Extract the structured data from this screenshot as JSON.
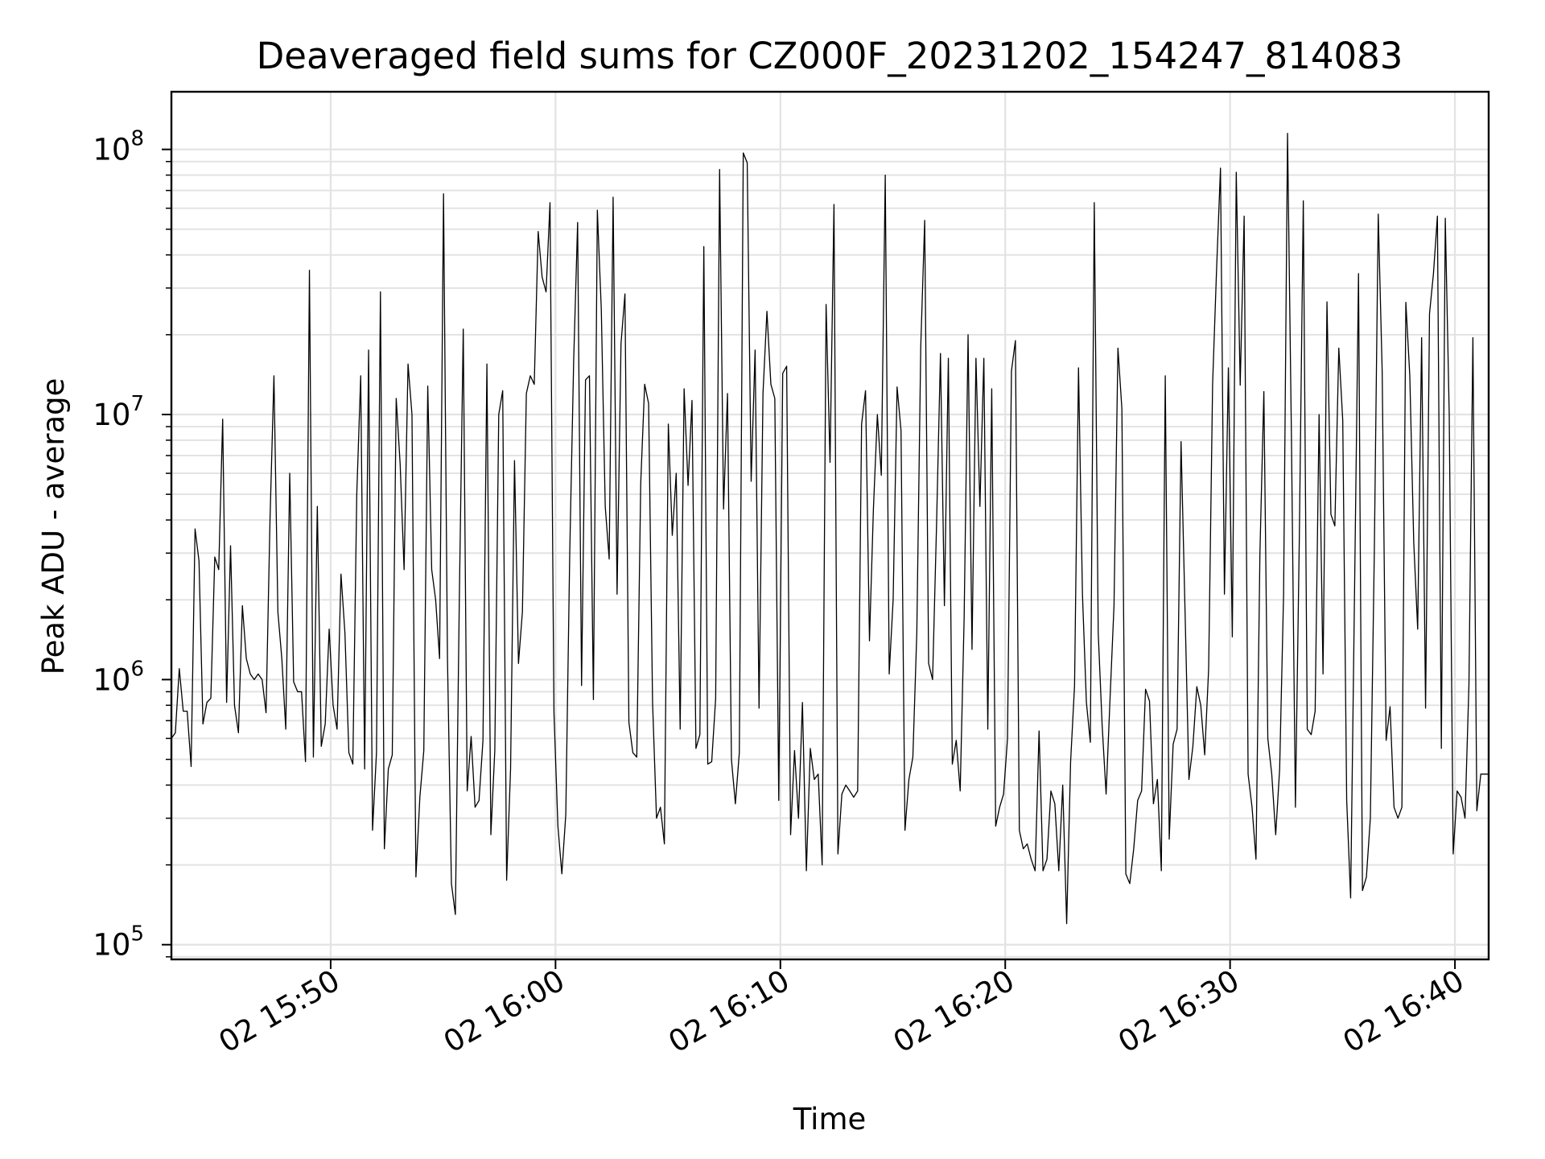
{
  "chart_data": {
    "type": "line",
    "title": "Deaveraged field sums for CZ000F_20231202_154247_814083",
    "xlabel": "Time",
    "ylabel": "Peak ADU - average",
    "yscale": "log",
    "ylim": [
      88000,
      165000000
    ],
    "xlim": [
      "2023-12-02 15:42:55",
      "2023-12-02 16:41:30"
    ],
    "grid": true,
    "line_color": "#000000",
    "x_ticks": [
      {
        "time": "2023-12-02 15:50",
        "label": "02 15:50"
      },
      {
        "time": "2023-12-02 16:00",
        "label": "02 16:00"
      },
      {
        "time": "2023-12-02 16:10",
        "label": "02 16:10"
      },
      {
        "time": "2023-12-02 16:20",
        "label": "02 16:20"
      },
      {
        "time": "2023-12-02 16:30",
        "label": "02 16:30"
      },
      {
        "time": "2023-12-02 16:40",
        "label": "02 16:40"
      }
    ],
    "y_ticks": [
      {
        "value": 100000,
        "base": "10",
        "exp": "5"
      },
      {
        "value": 1000000,
        "base": "10",
        "exp": "6"
      },
      {
        "value": 10000000,
        "base": "10",
        "exp": "7"
      },
      {
        "value": 100000000,
        "base": "10",
        "exp": "8"
      }
    ],
    "series": [
      {
        "x_start": "2023-12-02 15:42:55",
        "x_end": "2023-12-02 16:41:30",
        "values": [
          600000,
          630000,
          1100000,
          760000,
          760000,
          470000,
          3700000,
          2800000,
          680000,
          820000,
          850000,
          2900000,
          2600000,
          9600000,
          820000,
          3200000,
          800000,
          630000,
          1900000,
          1200000,
          1050000,
          1000000,
          1050000,
          1000000,
          750000,
          4000000,
          14000000,
          1800000,
          1200000,
          650000,
          6000000,
          980000,
          900000,
          900000,
          490000,
          35000000,
          510000,
          4500000,
          560000,
          680000,
          1550000,
          800000,
          650000,
          2500000,
          1500000,
          530000,
          480000,
          5000000,
          14000000,
          460000,
          17500000,
          270000,
          530000,
          29000000,
          230000,
          460000,
          520000,
          11500000,
          6500000,
          2600000,
          15500000,
          10000000,
          180000,
          360000,
          540000,
          12800000,
          2600000,
          2000000,
          1200000,
          68000000,
          1200000,
          170000,
          130000,
          2000000,
          21000000,
          380000,
          610000,
          330000,
          350000,
          590000,
          15500000,
          260000,
          540000,
          10000000,
          12300000,
          175000,
          460000,
          6700000,
          1150000,
          1800000,
          12000000,
          14000000,
          13000000,
          49000000,
          33000000,
          29000000,
          63000000,
          750000,
          280000,
          185000,
          310000,
          3000000,
          16000000,
          53000000,
          950000,
          13500000,
          14000000,
          840000,
          59000000,
          25000000,
          4500000,
          2850000,
          66000000,
          2100000,
          18500000,
          28500000,
          690000,
          530000,
          510000,
          5500000,
          13000000,
          11000000,
          820000,
          300000,
          330000,
          240000,
          9200000,
          3500000,
          6000000,
          650000,
          12500000,
          5400000,
          11300000,
          550000,
          620000,
          43000000,
          480000,
          490000,
          850000,
          84000000,
          4400000,
          12000000,
          500000,
          340000,
          530000,
          97000000,
          89000000,
          5600000,
          17500000,
          780000,
          12000000,
          24500000,
          13000000,
          11500000,
          350000,
          14300000,
          15200000,
          260000,
          540000,
          300000,
          820000,
          190000,
          550000,
          420000,
          440000,
          200000,
          26000000,
          6600000,
          62000000,
          220000,
          370000,
          400000,
          380000,
          360000,
          380000,
          9200000,
          12300000,
          1400000,
          4400000,
          10000000,
          5900000,
          80000000,
          1050000,
          2000000,
          12700000,
          8700000,
          270000,
          420000,
          510000,
          1500000,
          18000000,
          54000000,
          1150000,
          1000000,
          3800000,
          17000000,
          1900000,
          16300000,
          480000,
          590000,
          380000,
          1700000,
          20000000,
          1300000,
          16300000,
          4500000,
          16300000,
          650000,
          12500000,
          280000,
          330000,
          370000,
          600000,
          14600000,
          19000000,
          270000,
          230000,
          240000,
          210000,
          190000,
          640000,
          190000,
          210000,
          380000,
          340000,
          190000,
          400000,
          120000,
          490000,
          950000,
          15000000,
          2100000,
          820000,
          580000,
          63000000,
          1500000,
          670000,
          370000,
          850000,
          1900000,
          17800000,
          10500000,
          185000,
          170000,
          230000,
          350000,
          380000,
          920000,
          830000,
          340000,
          420000,
          190000,
          14000000,
          250000,
          570000,
          650000,
          7900000,
          1850000,
          420000,
          560000,
          940000,
          800000,
          520000,
          1100000,
          13000000,
          35000000,
          85000000,
          2100000,
          15000000,
          1450000,
          82000000,
          12900000,
          56000000,
          440000,
          330000,
          210000,
          3000000,
          12200000,
          600000,
          440000,
          260000,
          460000,
          2100000,
          115000000,
          8000000,
          330000,
          3500000,
          64000000,
          650000,
          620000,
          760000,
          10000000,
          1050000,
          26600000,
          4200000,
          3800000,
          17800000,
          9500000,
          350000,
          150000,
          2200000,
          34000000,
          160000,
          180000,
          300000,
          3000000,
          57000000,
          14500000,
          590000,
          790000,
          330000,
          300000,
          330000,
          26500000,
          14000000,
          3300000,
          1550000,
          19500000,
          780000,
          24000000,
          34000000,
          56000000,
          550000,
          55000000,
          10000000,
          220000,
          380000,
          360000,
          300000,
          960000,
          19500000,
          320000,
          440000,
          440000,
          440000
        ]
      }
    ]
  }
}
